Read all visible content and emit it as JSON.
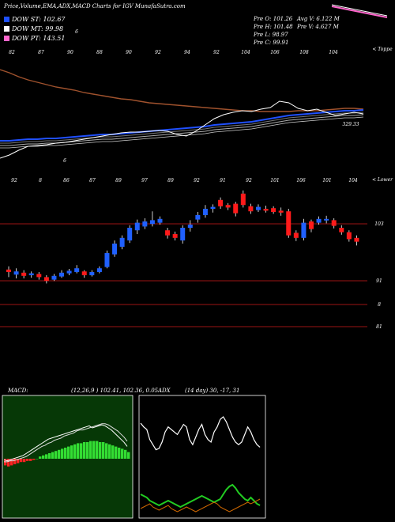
{
  "header": {
    "title": "Price,Volume,EMA,ADX,MACD Charts for IGV MunafaSutra.com",
    "stats": {
      "open": "Pre   O: 101.26",
      "high": "Pre   H: 101.48",
      "low": "Pre   L: 98.97",
      "close": "Pre   C: 99.91",
      "avg_vol": "Avg V: 6.122  M",
      "pre_vol": "Pre   V: 4.627 M"
    }
  },
  "legend": [
    {
      "label": "DOW ST: 102.67",
      "color": "#1e50ff"
    },
    {
      "label": "DOW MT: 99.98",
      "color": "#ffffff"
    },
    {
      "label": "DOW PT: 143.51",
      "color": "#ff66cc"
    }
  ],
  "colors": {
    "up": "#2060ff",
    "down": "#ff1a1a",
    "line": "#9b1515",
    "macd_hist": "#33dd33",
    "adx_green": "#22cc22",
    "adx_orange": "#cc6600"
  },
  "chart_data": [
    {
      "type": "line",
      "name": "price-ema-panel",
      "top_numbers": [
        "82",
        "87",
        "90",
        "88",
        "90",
        "92",
        "94",
        "92",
        "104",
        "106",
        "108",
        "104"
      ],
      "right_label": "< Toppe",
      "last_value": "329.33",
      "low_marker": "6",
      "extra_marker": "6",
      "price_line": [
        200,
        196,
        190,
        185,
        184,
        183,
        181,
        180,
        178,
        176,
        174,
        172,
        170,
        168,
        167,
        167,
        166,
        165,
        166,
        170,
        172,
        166,
        158,
        150,
        145,
        142,
        140,
        141,
        138,
        136,
        128,
        130,
        137,
        140,
        138,
        142,
        146,
        144,
        142,
        144
      ],
      "ema_short": [
        178,
        178,
        177,
        176,
        176,
        175,
        175,
        174,
        173,
        172,
        171,
        170,
        170,
        169,
        168,
        167,
        166,
        165,
        164,
        163,
        162,
        161,
        160,
        158,
        157,
        156,
        155,
        154,
        152,
        150,
        148,
        146,
        145,
        144,
        143,
        142,
        141,
        140,
        140,
        139
      ],
      "ema_long": [
        88,
        92,
        97,
        101,
        104,
        107,
        110,
        112,
        114,
        117,
        119,
        121,
        123,
        125,
        126,
        128,
        130,
        131,
        132,
        133,
        134,
        135,
        136,
        137,
        138,
        139,
        140,
        140,
        141,
        141,
        141,
        141,
        140,
        140,
        140,
        139,
        138,
        137,
        137,
        138
      ]
    },
    {
      "type": "bar",
      "name": "candlestick-panel",
      "top_numbers": [
        "92",
        "8",
        "86",
        "87",
        "89",
        "97",
        "89",
        "92",
        "91",
        "92",
        "101",
        "106",
        "101",
        "104"
      ],
      "right_label": "< Lower",
      "level_labels": [
        "103",
        "91",
        "8",
        "81"
      ],
      "levels": [
        103,
        91,
        8,
        81
      ],
      "candles": [
        {
          "o": 88,
          "c": 88.4,
          "h": 88.9,
          "l": 87.2,
          "up": false
        },
        {
          "o": 87.6,
          "c": 88.1,
          "h": 88.6,
          "l": 87.0,
          "up": true
        },
        {
          "o": 87.9,
          "c": 87.4,
          "h": 88.3,
          "l": 87.0,
          "up": false
        },
        {
          "o": 87.5,
          "c": 87.8,
          "h": 88.1,
          "l": 87.1,
          "up": true
        },
        {
          "o": 87.7,
          "c": 87.2,
          "h": 88.0,
          "l": 86.8,
          "up": false
        },
        {
          "o": 87.2,
          "c": 86.6,
          "h": 87.5,
          "l": 86.2,
          "up": false
        },
        {
          "o": 86.8,
          "c": 87.4,
          "h": 87.7,
          "l": 86.6,
          "up": true
        },
        {
          "o": 87.3,
          "c": 87.9,
          "h": 88.3,
          "l": 87.1,
          "up": true
        },
        {
          "o": 87.8,
          "c": 88.2,
          "h": 88.5,
          "l": 87.5,
          "up": true
        },
        {
          "o": 88.0,
          "c": 88.6,
          "h": 89.1,
          "l": 87.8,
          "up": true
        },
        {
          "o": 88.1,
          "c": 87.5,
          "h": 88.3,
          "l": 87.1,
          "up": false
        },
        {
          "o": 87.5,
          "c": 88.0,
          "h": 88.3,
          "l": 87.3,
          "up": true
        },
        {
          "o": 88.0,
          "c": 88.6,
          "h": 88.9,
          "l": 87.8,
          "up": true
        },
        {
          "o": 88.8,
          "c": 91.0,
          "h": 91.4,
          "l": 88.6,
          "up": true
        },
        {
          "o": 90.8,
          "c": 92.5,
          "h": 93.0,
          "l": 90.4,
          "up": true
        },
        {
          "o": 92.0,
          "c": 93.4,
          "h": 93.8,
          "l": 91.6,
          "up": true
        },
        {
          "o": 93.0,
          "c": 95.0,
          "h": 95.4,
          "l": 92.6,
          "up": true
        },
        {
          "o": 94.6,
          "c": 95.8,
          "h": 96.3,
          "l": 94.0,
          "up": true
        },
        {
          "o": 95.2,
          "c": 96.0,
          "h": 96.5,
          "l": 94.8,
          "up": true
        },
        {
          "o": 95.6,
          "c": 96.2,
          "h": 97.6,
          "l": 95.2,
          "up": true
        },
        {
          "o": 95.8,
          "c": 96.4,
          "h": 96.8,
          "l": 95.5,
          "up": true
        },
        {
          "o": 94.6,
          "c": 93.8,
          "h": 95.0,
          "l": 93.3,
          "up": false
        },
        {
          "o": 94.0,
          "c": 93.4,
          "h": 94.4,
          "l": 93.0,
          "up": false
        },
        {
          "o": 93.0,
          "c": 95.0,
          "h": 95.4,
          "l": 92.5,
          "up": true
        },
        {
          "o": 95.0,
          "c": 95.5,
          "h": 96.2,
          "l": 94.4,
          "up": true
        },
        {
          "o": 96.3,
          "c": 97.0,
          "h": 97.5,
          "l": 95.8,
          "up": true
        },
        {
          "o": 97.0,
          "c": 98.0,
          "h": 98.6,
          "l": 96.6,
          "up": true
        },
        {
          "o": 98.0,
          "c": 98.3,
          "h": 98.7,
          "l": 97.4,
          "up": true
        },
        {
          "o": 99.4,
          "c": 98.4,
          "h": 99.8,
          "l": 98.0,
          "up": false
        },
        {
          "o": 98.6,
          "c": 98.2,
          "h": 98.9,
          "l": 97.8,
          "up": false
        },
        {
          "o": 98.8,
          "c": 97.3,
          "h": 99.1,
          "l": 96.8,
          "up": false
        },
        {
          "o": 100.4,
          "c": 98.6,
          "h": 100.9,
          "l": 98.2,
          "up": false
        },
        {
          "o": 98.4,
          "c": 97.6,
          "h": 98.8,
          "l": 97.2,
          "up": false
        },
        {
          "o": 97.8,
          "c": 98.3,
          "h": 98.7,
          "l": 97.5,
          "up": true
        },
        {
          "o": 98.0,
          "c": 97.7,
          "h": 98.5,
          "l": 97.4,
          "up": false
        },
        {
          "o": 98.1,
          "c": 97.5,
          "h": 98.4,
          "l": 97.2,
          "up": false
        },
        {
          "o": 97.7,
          "c": 97.4,
          "h": 98.2,
          "l": 96.9,
          "up": false
        },
        {
          "o": 97.6,
          "c": 93.8,
          "h": 98.0,
          "l": 93.4,
          "up": false
        },
        {
          "o": 94.2,
          "c": 93.4,
          "h": 94.6,
          "l": 92.9,
          "up": false
        },
        {
          "o": 93.4,
          "c": 95.8,
          "h": 96.4,
          "l": 93.0,
          "up": true
        },
        {
          "o": 96.0,
          "c": 94.8,
          "h": 96.3,
          "l": 94.3,
          "up": false
        },
        {
          "o": 95.8,
          "c": 96.4,
          "h": 96.8,
          "l": 95.5,
          "up": true
        },
        {
          "o": 96.2,
          "c": 96.4,
          "h": 96.9,
          "l": 95.7,
          "up": true
        },
        {
          "o": 96.2,
          "c": 95.3,
          "h": 96.5,
          "l": 94.9,
          "up": false
        },
        {
          "o": 95.0,
          "c": 94.3,
          "h": 95.4,
          "l": 93.9,
          "up": false
        },
        {
          "o": 94.3,
          "c": 93.2,
          "h": 94.6,
          "l": 92.8,
          "up": false
        },
        {
          "o": 93.4,
          "c": 92.8,
          "h": 93.8,
          "l": 92.2,
          "up": false
        }
      ]
    },
    {
      "type": "bar",
      "name": "macd-panel",
      "label": "MACD:",
      "readout": "(12,26,9 ) 102.41, 102.36, 0.05",
      "histogram": [
        -6,
        -7,
        -6,
        -5,
        -4,
        -3,
        -3,
        -2,
        -2,
        -1,
        0,
        2,
        3,
        4,
        5,
        6,
        7,
        8,
        9,
        10,
        11,
        12,
        13,
        14,
        14,
        15,
        15,
        16,
        16,
        16,
        15,
        15,
        14,
        13,
        12,
        11,
        10,
        9,
        8,
        6
      ],
      "macd_line": [
        -1,
        -2,
        -1,
        0,
        1,
        2,
        3,
        5,
        7,
        9,
        11,
        13,
        15,
        17,
        19,
        20,
        21,
        22,
        23,
        24,
        25,
        26,
        27,
        28,
        29,
        30,
        31,
        32,
        30,
        31,
        32,
        33,
        32,
        30,
        28,
        25,
        22,
        19,
        16,
        12
      ],
      "signal_line": [
        -3,
        -3,
        -2,
        -2,
        -1,
        0,
        1,
        2,
        4,
        6,
        8,
        10,
        12,
        13,
        15,
        16,
        18,
        19,
        20,
        22,
        23,
        24,
        25,
        27,
        28,
        28,
        29,
        30,
        31,
        32,
        33,
        34,
        34,
        33,
        31,
        29,
        27,
        24,
        21,
        17
      ]
    },
    {
      "type": "line",
      "name": "adx-panel",
      "label": "ADX",
      "readout": "(14 day) 30, -17, 31",
      "adx": [
        75,
        72,
        70,
        62,
        58,
        54,
        55,
        60,
        68,
        72,
        70,
        68,
        66,
        70,
        74,
        72,
        62,
        58,
        64,
        70,
        74,
        66,
        62,
        60,
        68,
        72,
        78,
        80,
        76,
        70,
        64,
        60,
        58,
        60,
        66,
        72,
        68,
        62,
        58,
        56
      ],
      "plus_di": [
        30,
        28,
        26,
        22,
        20,
        18,
        16,
        18,
        20,
        22,
        20,
        18,
        16,
        14,
        16,
        18,
        20,
        22,
        24,
        26,
        28,
        26,
        24,
        22,
        20,
        22,
        24,
        30,
        36,
        40,
        42,
        38,
        32,
        28,
        24,
        22,
        26,
        22,
        18,
        16
      ],
      "minus_di": [
        12,
        14,
        16,
        18,
        14,
        12,
        10,
        12,
        14,
        16,
        12,
        10,
        8,
        10,
        12,
        14,
        12,
        10,
        8,
        10,
        12,
        14,
        16,
        18,
        20,
        18,
        14,
        12,
        10,
        8,
        10,
        12,
        14,
        16,
        18,
        20,
        18,
        20,
        22,
        24
      ]
    }
  ]
}
